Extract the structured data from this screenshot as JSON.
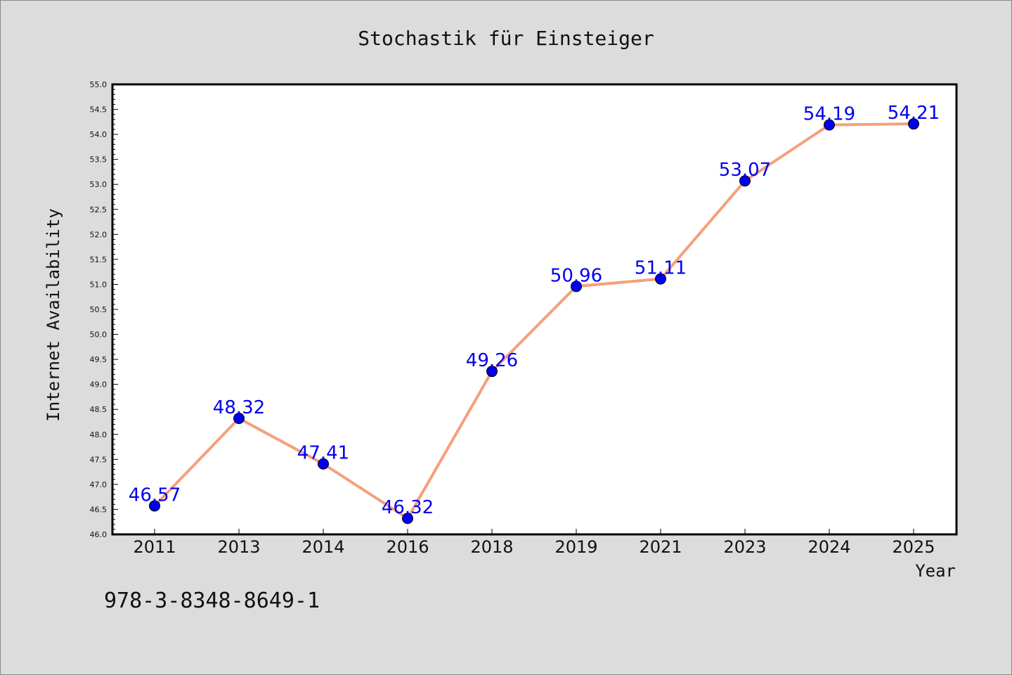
{
  "footer": {
    "isbn": "978-3-8348-8649-1"
  },
  "colors": {
    "background": "#dcdcdc",
    "plot_background": "#ffffff",
    "line": "#f4a07c",
    "marker": "#0000ee",
    "data_label": "#0000ee"
  },
  "chart_data": {
    "type": "line",
    "title": "Stochastik für Einsteiger",
    "xlabel": "Year",
    "ylabel": "Internet Availability",
    "categories": [
      "2011",
      "2013",
      "2014",
      "2016",
      "2018",
      "2019",
      "2021",
      "2023",
      "2024",
      "2025"
    ],
    "series": [
      {
        "values": [
          46.57,
          48.32,
          47.41,
          46.32,
          49.26,
          50.96,
          51.11,
          53.07,
          54.19,
          54.21
        ],
        "labels": [
          "46.57",
          "48.32",
          "47.41",
          "46.32",
          "49.26",
          "50.96",
          "51.11",
          "53.07",
          "54.19",
          "54.21"
        ]
      }
    ],
    "ylim": [
      46.0,
      55.0
    ],
    "yticks": [
      "46.0",
      "46.5",
      "47.0",
      "47.5",
      "48.0",
      "48.5",
      "49.0",
      "49.5",
      "50.0",
      "50.5",
      "51.0",
      "51.5",
      "52.0",
      "52.5",
      "53.0",
      "53.5",
      "54.0",
      "54.5",
      "55.0"
    ],
    "grid": false,
    "legend": "none"
  }
}
